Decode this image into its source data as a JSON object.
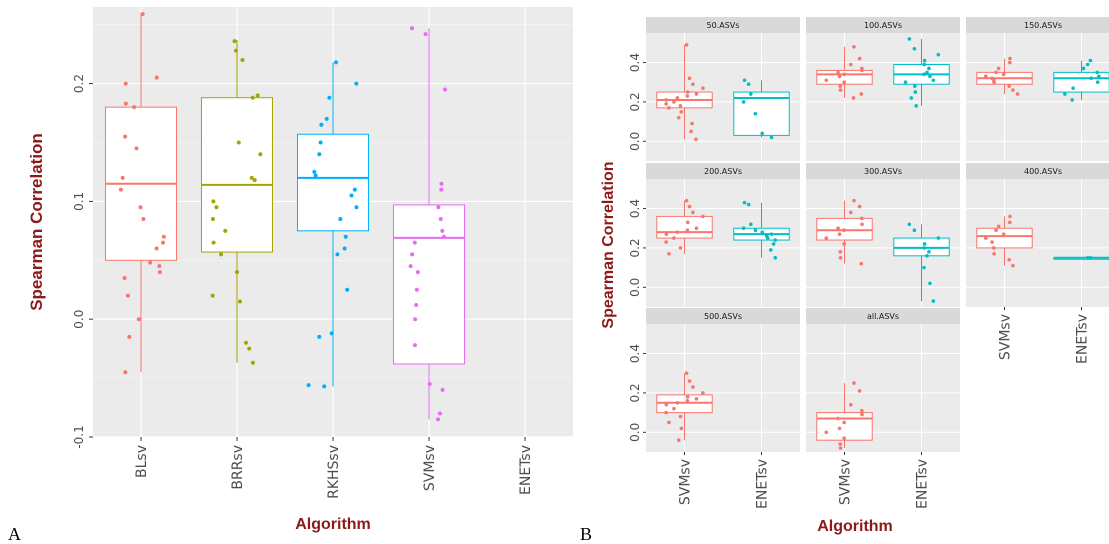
{
  "panel_labels": {
    "A": "A",
    "B": "B"
  },
  "chart_data": [
    {
      "type": "boxplot",
      "panel": "A",
      "ylabel": "Spearman Correlation",
      "xlabel": "Algorithm",
      "ylim": [
        -0.1,
        0.265
      ],
      "yticks": [
        -0.1,
        0.0,
        0.1,
        0.2
      ],
      "ytick_labels": [
        "-0.1",
        "0.0",
        "0.1",
        "0.2"
      ],
      "grid": true,
      "categories": [
        "BLsv",
        "BRRsv",
        "RKHSsv",
        "SVMsv",
        "ENETsv"
      ],
      "colors": [
        "#f8766d",
        "#a3a500",
        "#00b0f6",
        "#e76bf3",
        "#00bf7d"
      ],
      "boxes": [
        {
          "q1": 0.05,
          "median": 0.115,
          "q3": 0.18,
          "whisker_low": -0.045,
          "whisker_high": 0.26,
          "points": [
            0.259,
            0.205,
            0.2,
            0.183,
            0.18,
            0.155,
            0.145,
            0.12,
            0.11,
            0.095,
            0.085,
            0.07,
            0.065,
            0.06,
            0.048,
            0.045,
            0.04,
            0.035,
            0.02,
            0.0,
            -0.015,
            -0.045
          ]
        },
        {
          "q1": 0.057,
          "median": 0.114,
          "q3": 0.188,
          "whisker_low": -0.037,
          "whisker_high": 0.237,
          "points": [
            0.236,
            0.228,
            0.22,
            0.19,
            0.188,
            0.15,
            0.14,
            0.12,
            0.118,
            0.1,
            0.095,
            0.085,
            0.075,
            0.065,
            0.055,
            0.04,
            0.02,
            0.015,
            -0.02,
            -0.025,
            -0.037
          ]
        },
        {
          "q1": 0.075,
          "median": 0.12,
          "q3": 0.157,
          "whisker_low": -0.057,
          "whisker_high": 0.218,
          "points": [
            0.218,
            0.2,
            0.188,
            0.17,
            0.165,
            0.15,
            0.14,
            0.125,
            0.122,
            0.11,
            0.105,
            0.095,
            0.085,
            0.07,
            0.06,
            0.055,
            0.025,
            -0.012,
            -0.015,
            -0.056,
            -0.057
          ]
        },
        {
          "q1": -0.038,
          "median": 0.069,
          "q3": 0.097,
          "whisker_low": -0.085,
          "whisker_high": 0.247,
          "points": [
            0.247,
            0.242,
            0.195,
            0.115,
            0.11,
            0.095,
            0.085,
            0.075,
            0.07,
            0.065,
            0.055,
            0.045,
            0.04,
            0.025,
            0.012,
            0.0,
            -0.022,
            -0.055,
            -0.06,
            -0.08,
            -0.085
          ]
        },
        null
      ]
    },
    {
      "type": "boxplot",
      "panel": "B",
      "ylabel": "Spearman Correlation",
      "xlabel": "Algorithm",
      "categories": [
        "SVMsv",
        "ENETsv"
      ],
      "colors": [
        "#f8766d",
        "#00bfc4"
      ],
      "ylim": [
        -0.1,
        0.55
      ],
      "ytick_labels": [
        "0.0",
        "0.2",
        "0.4"
      ],
      "yticks": [
        0.0,
        0.2,
        0.4
      ],
      "facets": [
        {
          "title": "50.ASVs",
          "row": 0,
          "col": 0,
          "boxes": [
            {
              "q1": 0.17,
              "median": 0.21,
              "q3": 0.25,
              "lo": 0.01,
              "hi": 0.49,
              "points": [
                0.49,
                0.32,
                0.29,
                0.27,
                0.25,
                0.24,
                0.23,
                0.22,
                0.21,
                0.2,
                0.19,
                0.18,
                0.17,
                0.15,
                0.12,
                0.09,
                0.05,
                0.01
              ]
            },
            {
              "q1": 0.03,
              "median": 0.22,
              "q3": 0.25,
              "lo": 0.02,
              "hi": 0.31,
              "points": [
                0.31,
                0.29,
                0.24,
                0.2,
                0.14,
                0.04,
                0.02
              ]
            }
          ]
        },
        {
          "title": "100.ASVs",
          "row": 0,
          "col": 1,
          "boxes": [
            {
              "q1": 0.29,
              "median": 0.34,
              "q3": 0.36,
              "lo": 0.22,
              "hi": 0.48,
              "points": [
                0.48,
                0.42,
                0.39,
                0.37,
                0.36,
                0.35,
                0.34,
                0.33,
                0.31,
                0.3,
                0.28,
                0.26,
                0.24,
                0.22
              ]
            },
            {
              "q1": 0.29,
              "median": 0.34,
              "q3": 0.39,
              "lo": 0.18,
              "hi": 0.52,
              "points": [
                0.52,
                0.47,
                0.44,
                0.41,
                0.39,
                0.37,
                0.35,
                0.34,
                0.33,
                0.31,
                0.3,
                0.28,
                0.25,
                0.22,
                0.18
              ]
            }
          ]
        },
        {
          "title": "150.ASVs",
          "row": 0,
          "col": 2,
          "boxes": [
            {
              "q1": 0.29,
              "median": 0.32,
              "q3": 0.35,
              "lo": 0.24,
              "hi": 0.42,
              "points": [
                0.42,
                0.4,
                0.37,
                0.35,
                0.34,
                0.33,
                0.32,
                0.31,
                0.3,
                0.28,
                0.26,
                0.24
              ]
            },
            {
              "q1": 0.25,
              "median": 0.32,
              "q3": 0.35,
              "lo": 0.21,
              "hi": 0.41,
              "points": [
                0.41,
                0.39,
                0.37,
                0.35,
                0.33,
                0.32,
                0.3,
                0.27,
                0.24,
                0.21
              ]
            }
          ]
        },
        {
          "title": "200.ASVs",
          "row": 1,
          "col": 0,
          "boxes": [
            {
              "q1": 0.25,
              "median": 0.28,
              "q3": 0.36,
              "lo": 0.17,
              "hi": 0.44,
              "points": [
                0.44,
                0.41,
                0.38,
                0.36,
                0.33,
                0.3,
                0.29,
                0.28,
                0.27,
                0.25,
                0.23,
                0.2,
                0.17
              ]
            },
            {
              "q1": 0.24,
              "median": 0.27,
              "q3": 0.3,
              "lo": 0.15,
              "hi": 0.43,
              "points": [
                0.43,
                0.42,
                0.32,
                0.3,
                0.29,
                0.28,
                0.27,
                0.26,
                0.25,
                0.24,
                0.22,
                0.19,
                0.15
              ]
            }
          ]
        },
        {
          "title": "300.ASVs",
          "row": 1,
          "col": 1,
          "boxes": [
            {
              "q1": 0.24,
              "median": 0.29,
              "q3": 0.35,
              "lo": 0.12,
              "hi": 0.44,
              "points": [
                0.44,
                0.41,
                0.38,
                0.35,
                0.32,
                0.3,
                0.29,
                0.27,
                0.25,
                0.22,
                0.18,
                0.15,
                0.12
              ]
            },
            {
              "q1": 0.16,
              "median": 0.2,
              "q3": 0.25,
              "lo": -0.07,
              "hi": 0.32,
              "points": [
                0.32,
                0.29,
                0.25,
                0.22,
                0.2,
                0.18,
                0.16,
                0.1,
                0.02,
                -0.07
              ]
            }
          ]
        },
        {
          "title": "400.ASVs",
          "row": 1,
          "col": 2,
          "boxes": [
            {
              "q1": 0.2,
              "median": 0.26,
              "q3": 0.3,
              "lo": 0.11,
              "hi": 0.36,
              "points": [
                0.36,
                0.33,
                0.31,
                0.29,
                0.27,
                0.25,
                0.23,
                0.2,
                0.17,
                0.14,
                0.11
              ]
            },
            {
              "q1": 0.15,
              "median": 0.15,
              "q3": 0.15,
              "lo": 0.15,
              "hi": 0.15,
              "points": [
                0.15,
                0.15
              ]
            }
          ]
        },
        {
          "title": "500.ASVs",
          "row": 2,
          "col": 0,
          "boxes": [
            {
              "q1": 0.1,
              "median": 0.15,
              "q3": 0.19,
              "lo": -0.04,
              "hi": 0.3,
              "points": [
                0.3,
                0.26,
                0.23,
                0.2,
                0.18,
                0.17,
                0.16,
                0.15,
                0.14,
                0.12,
                0.1,
                0.08,
                0.05,
                0.02,
                -0.04
              ]
            },
            null
          ]
        },
        {
          "title": "all.ASVs",
          "row": 2,
          "col": 1,
          "boxes": [
            {
              "q1": -0.04,
              "median": 0.07,
              "q3": 0.1,
              "lo": -0.08,
              "hi": 0.25,
              "points": [
                0.25,
                0.21,
                0.14,
                0.11,
                0.09,
                0.07,
                0.05,
                0.02,
                0.0,
                -0.03,
                -0.06,
                -0.08
              ]
            },
            null
          ]
        }
      ]
    }
  ]
}
